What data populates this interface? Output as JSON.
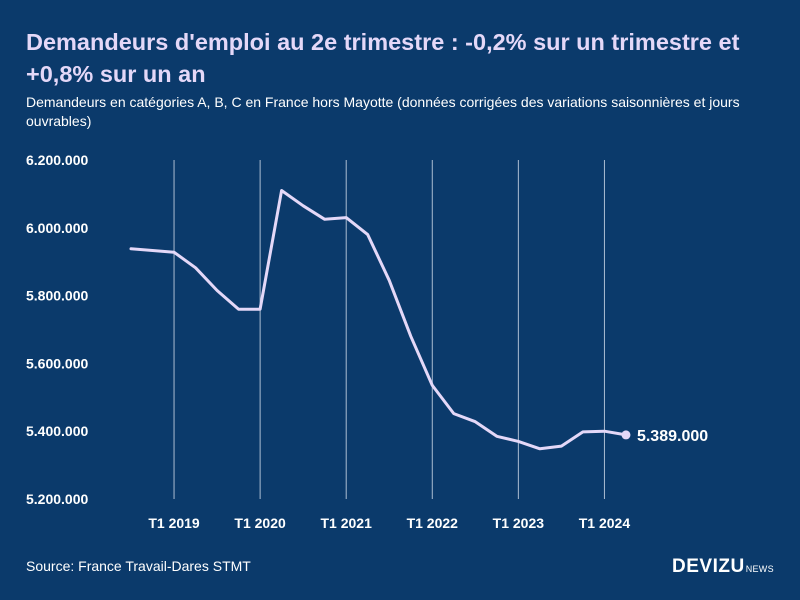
{
  "chart_data": {
    "type": "line",
    "title": "Demandeurs d'emploi au 2e trimestre : -0,2% sur un trimestre et +0,8% sur un an",
    "subtitle": "Demandeurs en catégories A, B, C en France hors Mayotte (données corrigées des variations saisonnières et jours ouvrables)",
    "y_ticks": [
      {
        "value": 6200000,
        "label": "6.200.000"
      },
      {
        "value": 6000000,
        "label": "6.000.000"
      },
      {
        "value": 5800000,
        "label": "5.800.000"
      },
      {
        "value": 5600000,
        "label": "5.600.000"
      },
      {
        "value": 5400000,
        "label": "5.400.000"
      },
      {
        "value": 5200000,
        "label": "5.200.000"
      }
    ],
    "ylim": [
      5200000,
      6200000
    ],
    "x_ticks": [
      {
        "x": 2019.0,
        "label": "T1 2019"
      },
      {
        "x": 2020.0,
        "label": "T1 2020"
      },
      {
        "x": 2021.0,
        "label": "T1 2021"
      },
      {
        "x": 2022.0,
        "label": "T1 2022"
      },
      {
        "x": 2023.0,
        "label": "T1 2023"
      },
      {
        "x": 2024.0,
        "label": "T1 2024"
      }
    ],
    "xlim": [
      2018.5,
      2024.75
    ],
    "grid": "vertical",
    "series": [
      {
        "color": "#e4d8f8",
        "points": [
          {
            "x": 2018.5,
            "y": 5938000
          },
          {
            "x": 2019.0,
            "y": 5928000
          },
          {
            "x": 2019.25,
            "y": 5882000
          },
          {
            "x": 2019.5,
            "y": 5815000
          },
          {
            "x": 2019.75,
            "y": 5760000
          },
          {
            "x": 2020.0,
            "y": 5760000
          },
          {
            "x": 2020.25,
            "y": 6110000
          },
          {
            "x": 2020.5,
            "y": 6065000
          },
          {
            "x": 2020.75,
            "y": 6025000
          },
          {
            "x": 2021.0,
            "y": 6030000
          },
          {
            "x": 2021.25,
            "y": 5980000
          },
          {
            "x": 2021.5,
            "y": 5845000
          },
          {
            "x": 2021.75,
            "y": 5680000
          },
          {
            "x": 2022.0,
            "y": 5535000
          },
          {
            "x": 2022.25,
            "y": 5452000
          },
          {
            "x": 2022.5,
            "y": 5428000
          },
          {
            "x": 2022.75,
            "y": 5385000
          },
          {
            "x": 2023.0,
            "y": 5370000
          },
          {
            "x": 2023.25,
            "y": 5348000
          },
          {
            "x": 2023.5,
            "y": 5356000
          },
          {
            "x": 2023.75,
            "y": 5398000
          },
          {
            "x": 2024.0,
            "y": 5400000
          },
          {
            "x": 2024.25,
            "y": 5389000
          }
        ]
      }
    ],
    "end_label": "5.389.000",
    "source": "Source: France Travail-Dares STMT"
  },
  "branding": {
    "logo_main": "DEVIZU",
    "logo_suffix": "NEWS"
  },
  "colors": {
    "background": "#0b3a6b",
    "line": "#e4d8f8",
    "grid": "#c9d4e4",
    "text": "#ffffff"
  }
}
